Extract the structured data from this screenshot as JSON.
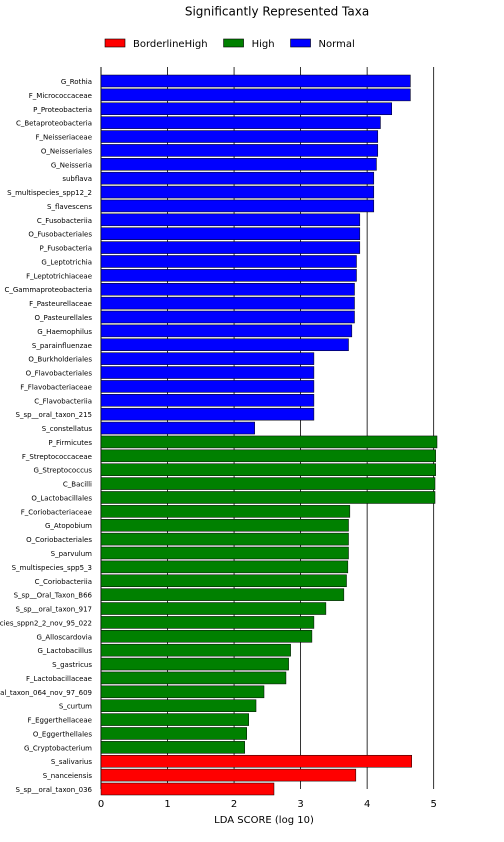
{
  "chart_data": {
    "type": "bar",
    "orientation": "horizontal",
    "title": "Significantly Represented Taxa",
    "x_label": "LDA SCORE (log 10)",
    "categories": [
      "G_Rothia",
      "F_Micrococcaceae",
      "P_Proteobacteria",
      "C_Betaproteobacteria",
      "F_Neisseriaceae",
      "O_Neisseriales",
      "G_Neisseria",
      "subflava",
      "S_multispecies_spp12_2",
      "S_flavescens",
      "C_Fusobacteriia",
      "O_Fusobacteriales",
      "P_Fusobacteria",
      "G_Leptotrichia",
      "F_Leptotrichiaceae",
      "C_Gammaproteobacteria",
      "F_Pasteurellaceae",
      "O_Pasteurellales",
      "G_Haemophilus",
      "S_parainfluenzae",
      "O_Burkholderiales",
      "O_Flavobacteriales",
      "F_Flavobacteriaceae",
      "C_Flavobacteriia",
      "S_sp__oral_taxon_215",
      "S_constellatus",
      "P_Firmicutes",
      "F_Streptococcaceae",
      "G_Streptococcus",
      "C_Bacilli",
      "O_Lactobacillales",
      "F_Coriobacteriaceae",
      "G_Atopobium",
      "O_Coriobacteriales",
      "S_parvulum",
      "S_multispecies_spp5_3",
      "C_Coriobacteriia",
      "S_sp__Oral_Taxon_B66",
      "S_sp__oral_taxon_917",
      "cies_sppn2_2_nov_95_022",
      "G_Alloscardovia",
      "G_Lactobacillus",
      "S_gastricus",
      "F_Lactobacillaceae",
      "al_taxon_064_nov_97_609",
      "S_curtum",
      "F_Eggerthellaceae",
      "O_Eggerthellales",
      "G_Cryptobacterium",
      "S_salivarius",
      "S_nanceiensis",
      "S_sp__oral_taxon_036"
    ],
    "series": [
      {
        "name": "BorderlineHigh",
        "color": "#ff0000",
        "values": [
          null,
          null,
          null,
          null,
          null,
          null,
          null,
          null,
          null,
          null,
          null,
          null,
          null,
          null,
          null,
          null,
          null,
          null,
          null,
          null,
          null,
          null,
          null,
          null,
          null,
          null,
          null,
          null,
          null,
          null,
          null,
          null,
          null,
          null,
          null,
          null,
          null,
          null,
          null,
          null,
          null,
          null,
          null,
          null,
          null,
          null,
          null,
          null,
          null,
          4.67,
          3.83,
          2.6
        ]
      },
      {
        "name": "High",
        "color": "#008000",
        "values": [
          null,
          null,
          null,
          null,
          null,
          null,
          null,
          null,
          null,
          null,
          null,
          null,
          null,
          null,
          null,
          null,
          null,
          null,
          null,
          null,
          null,
          null,
          null,
          null,
          null,
          null,
          5.05,
          5.03,
          5.03,
          5.02,
          5.02,
          3.74,
          3.72,
          3.72,
          3.72,
          3.71,
          3.69,
          3.65,
          3.38,
          3.2,
          3.17,
          2.85,
          2.82,
          2.78,
          2.45,
          2.33,
          2.22,
          2.19,
          2.16,
          null,
          null,
          null
        ]
      },
      {
        "name": "Normal",
        "color": "#0000ff",
        "values": [
          4.65,
          4.65,
          4.37,
          4.2,
          4.16,
          4.16,
          4.14,
          4.1,
          4.1,
          4.1,
          3.89,
          3.89,
          3.89,
          3.84,
          3.84,
          3.81,
          3.81,
          3.81,
          3.77,
          3.72,
          3.2,
          3.2,
          3.2,
          3.2,
          3.2,
          2.31,
          null,
          null,
          null,
          null,
          null,
          null,
          null,
          null,
          null,
          null,
          null,
          null,
          null,
          null,
          null,
          null,
          null,
          null,
          null,
          null,
          null,
          null,
          null,
          null,
          null,
          null
        ]
      }
    ],
    "xlim": [
      0,
      5.05
    ],
    "xticks": [
      0,
      1,
      2,
      3,
      4,
      5
    ],
    "grid": true
  }
}
